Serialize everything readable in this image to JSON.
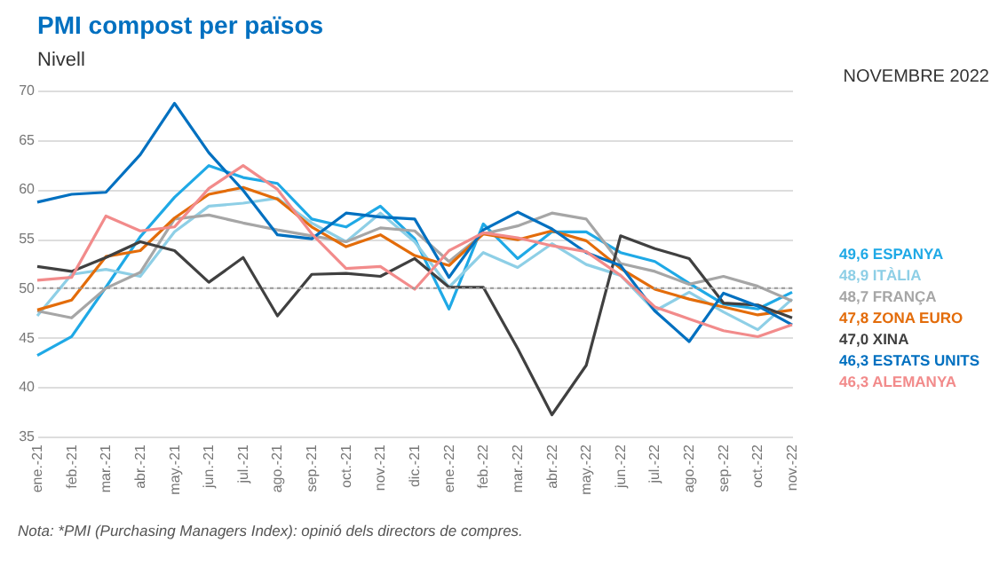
{
  "chart_data": {
    "type": "line",
    "title": "PMI compost per països",
    "subtitle": "Nivell",
    "legend_title": "NOVEMBRE 2022",
    "categories": [
      "ene.-21",
      "feb.-21",
      "mar.-21",
      "abr.-21",
      "may.-21",
      "jun.-21",
      "jul.-21",
      "ago.-21",
      "sep.-21",
      "oct.-21",
      "nov.-21",
      "dic.-21",
      "ene.-22",
      "feb.-22",
      "mar.-22",
      "abr.-22",
      "may.-22",
      "jun.-22",
      "jul.-22",
      "ago.-22",
      "sep.-22",
      "oct.-22",
      "nov.-22"
    ],
    "series": [
      {
        "name": "49,6  ESPANYA",
        "color": "#1fa9e6",
        "values": [
          43.2,
          45.1,
          50.1,
          55.2,
          59.2,
          62.4,
          61.2,
          60.6,
          57.0,
          56.2,
          58.3,
          55.0,
          47.9,
          56.5,
          53.0,
          55.7,
          55.7,
          53.6,
          52.7,
          50.5,
          48.4,
          47.9,
          49.6
        ]
      },
      {
        "name": "48,9  ITÀLIA",
        "color": "#8ecfe6",
        "values": [
          47.2,
          51.4,
          51.9,
          51.2,
          55.7,
          58.3,
          58.6,
          59.1,
          56.6,
          54.7,
          57.6,
          54.7,
          50.1,
          53.6,
          52.1,
          54.5,
          52.4,
          51.3,
          47.7,
          49.6,
          47.6,
          45.8,
          48.9
        ]
      },
      {
        "name": "48,7  FRANÇA",
        "color": "#a6a6a6",
        "values": [
          47.7,
          47.0,
          50.0,
          51.6,
          57.0,
          57.4,
          56.6,
          55.9,
          55.3,
          54.7,
          56.1,
          55.8,
          52.7,
          55.5,
          56.3,
          57.6,
          57.0,
          52.5,
          51.7,
          50.4,
          51.2,
          50.2,
          48.7
        ]
      },
      {
        "name": "47,8  ZONA EURO",
        "color": "#e36c0a",
        "values": [
          47.8,
          48.8,
          53.2,
          53.8,
          57.1,
          59.5,
          60.2,
          59.0,
          56.2,
          54.2,
          55.4,
          53.3,
          52.3,
          55.5,
          54.9,
          55.8,
          54.8,
          52.0,
          49.9,
          48.9,
          48.1,
          47.3,
          47.8
        ]
      },
      {
        "name": "47,0  XINA",
        "color": "#404040",
        "values": [
          52.2,
          51.7,
          53.1,
          54.7,
          53.8,
          50.6,
          53.1,
          47.2,
          51.4,
          51.5,
          51.2,
          53.0,
          50.1,
          50.1,
          43.9,
          37.2,
          42.2,
          55.3,
          54.0,
          53.0,
          48.5,
          48.3,
          47.0
        ]
      },
      {
        "name": "46,3  ESTATS UNITS",
        "color": "#0070c0",
        "values": [
          58.7,
          59.5,
          59.7,
          63.5,
          68.7,
          63.7,
          59.9,
          55.4,
          55.0,
          57.6,
          57.2,
          57.0,
          51.1,
          55.9,
          57.7,
          56.0,
          53.6,
          52.3,
          47.7,
          44.6,
          49.5,
          48.2,
          46.3
        ]
      },
      {
        "name": "46,3  ALEMANYA",
        "color": "#f28b8b",
        "values": [
          50.8,
          51.1,
          57.3,
          55.8,
          56.2,
          60.1,
          62.4,
          60.0,
          55.5,
          52.0,
          52.2,
          49.9,
          53.8,
          55.6,
          55.1,
          54.3,
          53.7,
          51.3,
          48.1,
          46.9,
          45.7,
          45.1,
          46.3
        ]
      }
    ],
    "ylim": [
      35,
      70
    ],
    "yticks": [
      35,
      40,
      45,
      50,
      55,
      60,
      65,
      70
    ],
    "grid": "y",
    "legend": "right",
    "ref_lines": [
      {
        "axis": "y",
        "value": 50,
        "color": "#999999",
        "line_style": "dotted"
      }
    ],
    "annotations": [
      "Nota: *PMI (Purchasing Managers Index): opinió dels directors de compres."
    ]
  }
}
